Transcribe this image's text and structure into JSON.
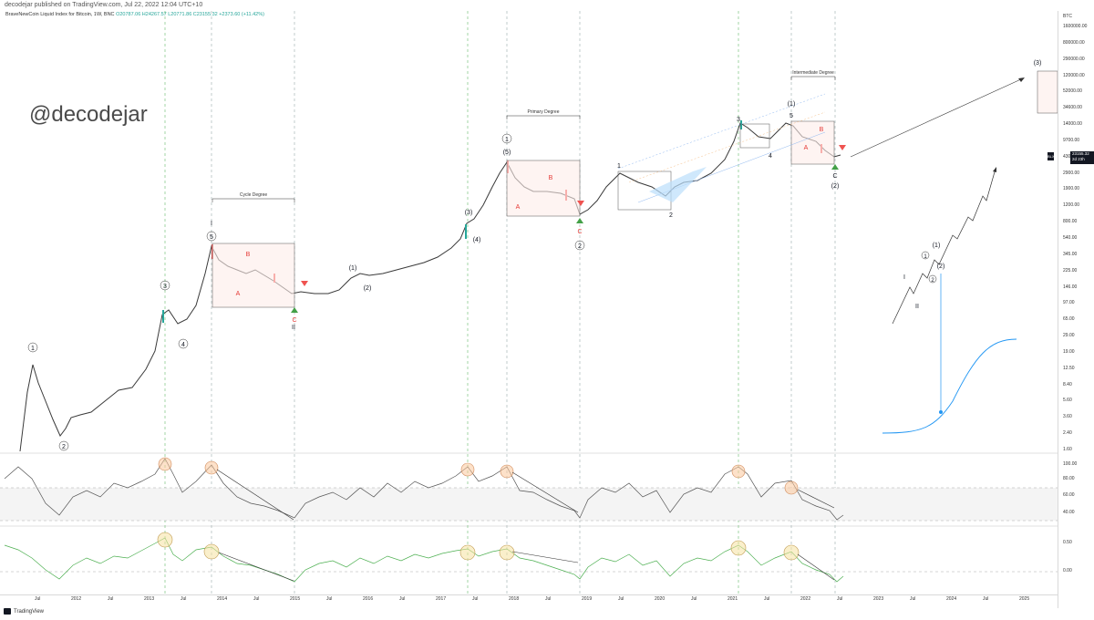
{
  "header": {
    "published": "decodejar published on TradingView.com, Jul 22, 2022 12:04 UTC+10"
  },
  "legend": {
    "symbol": "BraveNewCoin Liquid Index for Bitcoin, 1W, BNC",
    "ohlc": "O20787.06  H24267.57  L20771.86  C23155.32  +2373.60 (+11.42%)"
  },
  "watermark": "@decodejar",
  "degrees": {
    "cycle": "Cycle Degree",
    "primary": "Primary Degree",
    "intermediate": "Intermediate Degree"
  },
  "wave_labels": {
    "w1": "1",
    "w2": "2",
    "w3": "3",
    "w4": "4",
    "w5": "5",
    "roman1": "I",
    "roman2": "II",
    "a": "A",
    "b": "B",
    "c": "C",
    "p1": "(1)",
    "p2": "(2)",
    "p3": "(3)",
    "p4": "(4)",
    "p5": "(5)",
    "s1": "1",
    "s2": "2",
    "s3": "3",
    "s4": "4",
    "s5": "5"
  },
  "price_axis": {
    "currency": "BTC",
    "ticks": [
      "1600000.00",
      "800000.00",
      "290000.00",
      "120000.00",
      "52000.00",
      "34600.00",
      "14000.00",
      "9700.00",
      "4300.00",
      "2900.00",
      "1900.00",
      "1200.00",
      "800.00",
      "540.00",
      "345.00",
      "225.00",
      "146.00",
      "97.00",
      "65.00",
      "29.00",
      "19.00",
      "12.50",
      "8.40",
      "5.60",
      "3.60",
      "2.40",
      "1.60"
    ],
    "osc1_ticks": [
      "100.00",
      "80.00",
      "60.00",
      "40.00"
    ],
    "osc2_ticks": [
      "0.50",
      "0.00"
    ],
    "last_price": "23155.32",
    "last_tag": "BLX",
    "countdown": "2d 23h"
  },
  "time_axis": [
    "Jul",
    "2012",
    "Jul",
    "2013",
    "Jul",
    "2014",
    "Jul",
    "2015",
    "Jul",
    "2016",
    "Jul",
    "2017",
    "Jul",
    "2018",
    "Jul",
    "2019",
    "Jul",
    "2020",
    "Jul",
    "2021",
    "Jul",
    "2022",
    "Jul",
    "2023",
    "Jul",
    "2024",
    "Jul",
    "2025"
  ],
  "footer": {
    "brand": "TradingView"
  },
  "colors": {
    "up": "#26a69a",
    "down": "#ef5350",
    "osc1": "#555555",
    "osc2": "#4caf50",
    "fib_blue": "#90b8f0",
    "accent": "#2196f3"
  }
}
